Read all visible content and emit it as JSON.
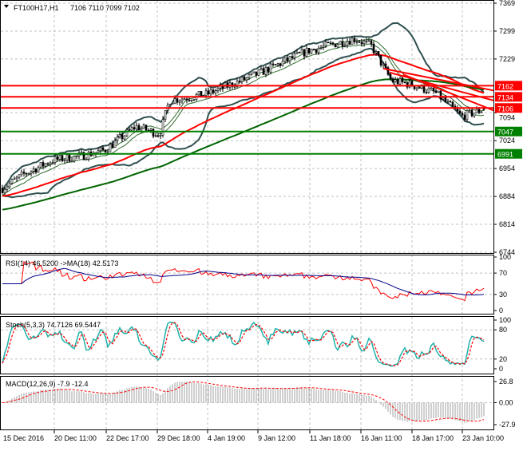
{
  "chart_data": {
    "type": "candlestick",
    "header": {
      "symbol_timeframe": "FT100H17,H1",
      "ohlc": "7106 7110 7099 7102"
    },
    "last_bar": {
      "open": 7106,
      "high": 7110,
      "low": 7099,
      "close": 7102
    },
    "y_ticks": [
      "7369",
      "7299",
      "7229",
      "7094",
      "7024",
      "6954",
      "6884",
      "6814",
      "6744"
    ],
    "ylim": [
      6744,
      7369
    ],
    "x_ticks": [
      "15 Dec 2016",
      "20 Dec 11:00",
      "22 Dec 17:00",
      "29 Dec 18:00",
      "4 Jan 19:00",
      "9 Jan 12:00",
      "11 Jan 18:00",
      "16 Jan 11:00",
      "18 Jan 17:00",
      "23 Jan 10:00"
    ],
    "price_path_at_ticks": [
      6900,
      6975,
      7000,
      7040,
      7140,
      7190,
      7250,
      7270,
      7160,
      7090
    ],
    "final_price": 7102,
    "levels": [
      {
        "label": "7162",
        "value": 7162,
        "color": "#ff0000"
      },
      {
        "label": "7134",
        "value": 7134,
        "color": "#ff0000"
      },
      {
        "label": "7106",
        "value": 7106,
        "color": "#ff0000"
      },
      {
        "label": "7047",
        "value": 7047,
        "color": "#008000"
      },
      {
        "label": "6991",
        "value": 6991,
        "color": "#008000"
      }
    ],
    "grid": true,
    "panels": {
      "rsi": {
        "title": "RSI(14) 46.5200  ->MA(18) 42.5173",
        "ticks": [
          "100",
          "70",
          "30",
          "0"
        ],
        "ylim": [
          0,
          100
        ],
        "levels": [
          70,
          30
        ],
        "line_color": "#ff0000",
        "ma_color": "#00008b"
      },
      "stoch": {
        "title": "Stoch(5,3,3) 74.7126 69.5447",
        "ticks": [
          "100",
          "80",
          "20",
          "0"
        ],
        "ylim": [
          0,
          100
        ],
        "levels": [
          80,
          20
        ],
        "main_color": "#20b2aa",
        "signal_color": "#ff0000"
      },
      "macd": {
        "title": "MACD(12,26,9) -7.9 -12.4",
        "ticks": [
          "26.8",
          "0.00",
          "-27.9"
        ],
        "ylim": [
          -27.9,
          26.8
        ],
        "hist_color": "#a0a0a0",
        "signal_color": "#ff0000"
      }
    }
  }
}
